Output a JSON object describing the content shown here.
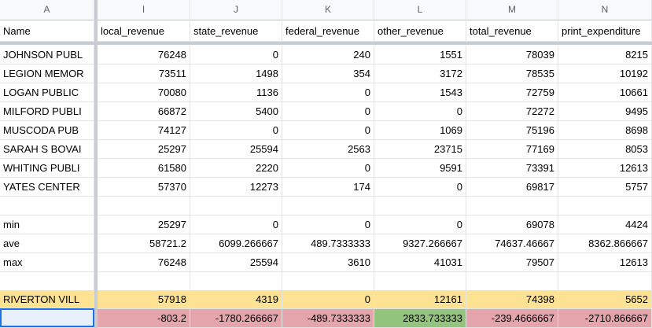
{
  "column_letters": [
    "A",
    "I",
    "J",
    "K",
    "L",
    "M",
    "N"
  ],
  "headers": [
    "Name",
    "local_revenue",
    "state_revenue",
    "federal_revenue",
    "other_revenue",
    "total_revenue",
    "print_expenditure"
  ],
  "rows": [
    [
      "JOHNSON PUBL",
      "76248",
      "0",
      "240",
      "1551",
      "78039",
      "8215"
    ],
    [
      "LEGION MEMOR",
      "73511",
      "1498",
      "354",
      "3172",
      "78535",
      "10192"
    ],
    [
      "LOGAN PUBLIC",
      "70080",
      "1136",
      "0",
      "1543",
      "72759",
      "10661"
    ],
    [
      "MILFORD PUBLI",
      "66872",
      "5400",
      "0",
      "0",
      "72272",
      "9495"
    ],
    [
      "MUSCODA PUB",
      "74127",
      "0",
      "0",
      "1069",
      "75196",
      "8698"
    ],
    [
      "SARAH S BOVAI",
      "25297",
      "25594",
      "2563",
      "23715",
      "77169",
      "8053"
    ],
    [
      "WHITING PUBLI",
      "61580",
      "2220",
      "0",
      "9591",
      "73391",
      "12613"
    ],
    [
      "YATES CENTER",
      "57370",
      "12273",
      "174",
      "0",
      "69817",
      "5757"
    ]
  ],
  "stats": [
    [
      "min",
      "25297",
      "0",
      "0",
      "0",
      "69078",
      "4424"
    ],
    [
      "ave",
      "58721.2",
      "6099.266667",
      "489.7333333",
      "9327.266667",
      "74637.46667",
      "8362.866667"
    ],
    [
      "max",
      "76248",
      "25594",
      "3610",
      "41031",
      "79507",
      "12613"
    ]
  ],
  "highlight_row": [
    "RIVERTON VILL",
    "57918",
    "4319",
    "0",
    "12161",
    "74398",
    "5652"
  ],
  "diff_row": [
    "",
    "-803.2",
    "-1780.266667",
    "-489.7333333",
    "2833.733333",
    "-239.4666667",
    "-2710.866667"
  ],
  "colors": {
    "highlight": "#fde293",
    "negative": "#e5a5ad",
    "positive": "#93c47d",
    "selection": "#1a73e8"
  }
}
